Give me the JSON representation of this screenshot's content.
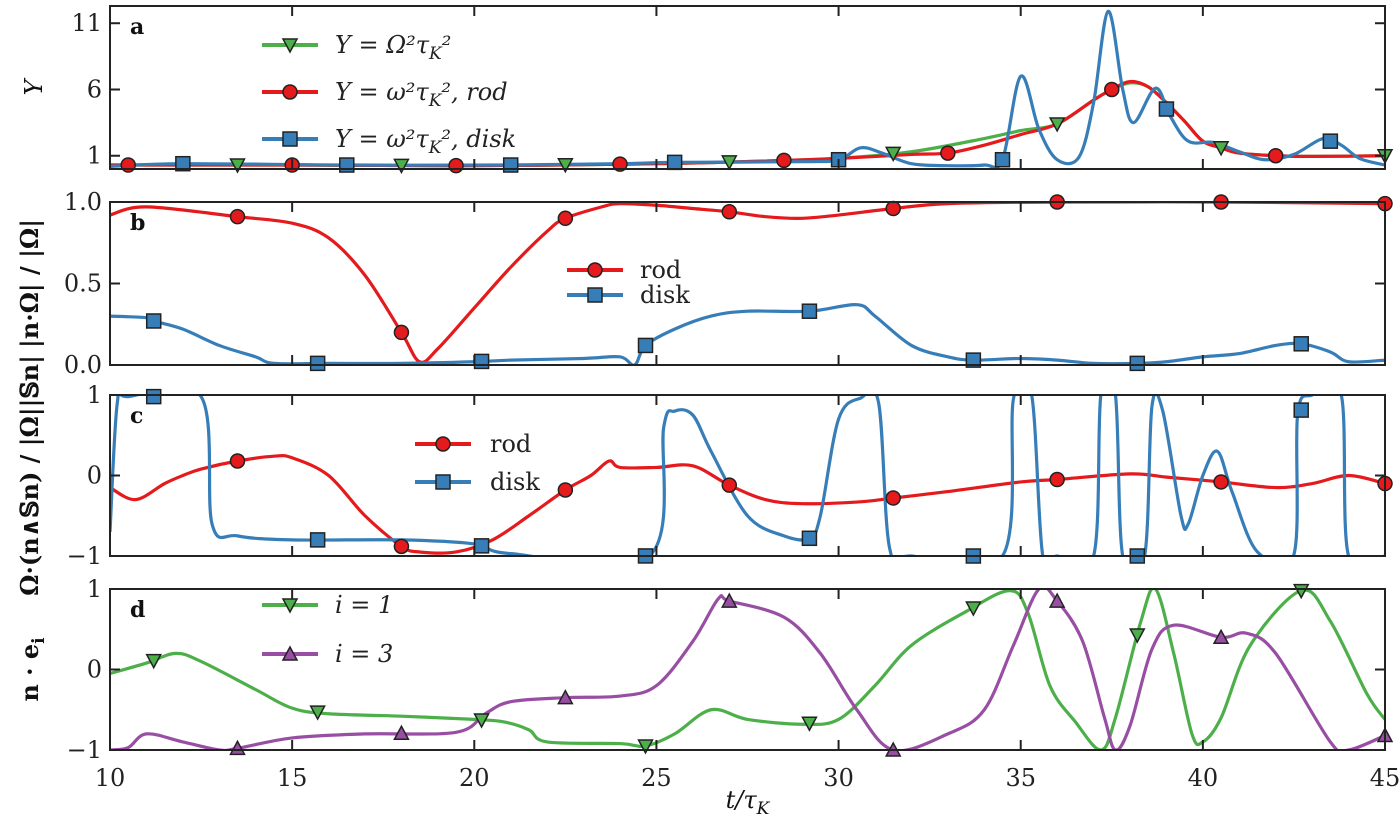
{
  "chart_data": [
    {
      "panel": "a",
      "type": "line",
      "ylabel": "Y",
      "xlim": [
        10,
        45
      ],
      "ylim": [
        0,
        12.3
      ],
      "yticks": [
        1,
        6,
        11
      ],
      "xticks": [
        10,
        15,
        20,
        25,
        30,
        35,
        40,
        45
      ],
      "legend_position": "upper-left",
      "series": [
        {
          "name": "Y = Ω²τ_K²",
          "color": "#4daf4a",
          "marker": "triangle-down",
          "marker_x": [
            13.5,
            18,
            22.5,
            27,
            31.5,
            36,
            40.5,
            45
          ],
          "x": [
            10,
            15,
            20,
            25,
            28,
            30,
            32,
            34,
            35,
            36,
            37,
            37.5,
            38,
            38.5,
            39,
            39.5,
            40,
            40.5,
            41,
            42,
            43,
            45
          ],
          "y": [
            0.3,
            0.3,
            0.25,
            0.4,
            0.6,
            0.8,
            1.3,
            2.3,
            2.9,
            3.4,
            5.2,
            6.0,
            6.5,
            6.2,
            5.0,
            3.6,
            2.1,
            1.6,
            1.2,
            1.0,
            0.95,
            1.0
          ]
        },
        {
          "name": "Y = ω²τ_K², rod",
          "color": "#e41a1c",
          "marker": "circle",
          "marker_x": [
            10.5,
            15,
            19.5,
            24,
            28.5,
            33,
            37.5,
            42
          ],
          "x": [
            10,
            15,
            20,
            25,
            28,
            30,
            32,
            33,
            34,
            35,
            36,
            37,
            37.5,
            38,
            38.5,
            39,
            39.5,
            40,
            40.5,
            41,
            42,
            43,
            45
          ],
          "y": [
            0.3,
            0.3,
            0.25,
            0.4,
            0.6,
            0.8,
            1.1,
            1.2,
            1.8,
            2.6,
            3.4,
            5.2,
            6.0,
            6.6,
            6.2,
            5.0,
            3.6,
            2.1,
            1.6,
            1.2,
            1.0,
            0.95,
            1.0
          ]
        },
        {
          "name": "Y = ω²τ_K², disk",
          "color": "#377eb8",
          "marker": "square",
          "marker_x": [
            12,
            16.5,
            21,
            25.5,
            30,
            34.5,
            39,
            43.5
          ],
          "x": [
            10,
            12,
            16.5,
            21,
            24,
            25.5,
            29,
            30,
            30.6,
            31.2,
            32,
            33,
            34,
            34.5,
            35,
            35.5,
            36,
            36.6,
            37,
            37.4,
            37.8,
            38.1,
            38.7,
            39.1,
            39.6,
            40.3,
            41,
            41.7,
            42.5,
            43.3,
            43.8,
            44.3,
            45
          ],
          "y": [
            0.2,
            0.4,
            0.3,
            0.3,
            0.4,
            0.5,
            0.55,
            0.7,
            1.6,
            1.2,
            0.4,
            0.25,
            0.3,
            0.7,
            7.0,
            3.0,
            0.7,
            0.9,
            5.0,
            11.9,
            6.0,
            3.5,
            6.1,
            4.0,
            2.1,
            2.0,
            1.3,
            0.7,
            1.1,
            2.3,
            1.8,
            0.8,
            0.3
          ]
        }
      ]
    },
    {
      "panel": "b",
      "type": "line",
      "ylabel": "|n·Ω| / |Ω|",
      "xlim": [
        10,
        45
      ],
      "ylim": [
        0,
        1
      ],
      "yticks": [
        0.0,
        0.5,
        1.0
      ],
      "ytick_labels": [
        "0.0",
        "0.5",
        "1.0"
      ],
      "xticks": [
        10,
        15,
        20,
        25,
        30,
        35,
        40,
        45
      ],
      "legend_position": "center",
      "series": [
        {
          "name": "rod",
          "color": "#e41a1c",
          "marker": "circle",
          "marker_x": [
            13.5,
            18,
            22.5,
            27,
            31.5,
            36,
            40.5,
            45
          ],
          "x": [
            10,
            11,
            13.5,
            15,
            16,
            17,
            18,
            18.5,
            19,
            20,
            21,
            22,
            22.5,
            23.5,
            24,
            25,
            26,
            27,
            28,
            29,
            30,
            31.5,
            33,
            36,
            40.5,
            45
          ],
          "y": [
            0.92,
            0.97,
            0.91,
            0.87,
            0.78,
            0.55,
            0.2,
            0.02,
            0.1,
            0.35,
            0.6,
            0.82,
            0.9,
            0.97,
            0.99,
            0.98,
            0.96,
            0.94,
            0.91,
            0.9,
            0.92,
            0.96,
            0.99,
            1.0,
            1.0,
            0.99
          ]
        },
        {
          "name": "disk",
          "color": "#377eb8",
          "marker": "square",
          "marker_x": [
            11.2,
            15.7,
            20.2,
            24.7,
            29.2,
            33.7,
            38.2,
            42.7
          ],
          "x": [
            10,
            11,
            11.2,
            12,
            13,
            14,
            14.5,
            16,
            18,
            20,
            21,
            23,
            24,
            24.4,
            24.7,
            25.5,
            26.5,
            27.5,
            29.2,
            30.5,
            31,
            32,
            33,
            33.7,
            35,
            36,
            37,
            38.2,
            39,
            40,
            41,
            42,
            42.7,
            43.5,
            44,
            45
          ],
          "y": [
            0.3,
            0.29,
            0.27,
            0.22,
            0.12,
            0.05,
            0.01,
            0.01,
            0.01,
            0.02,
            0.03,
            0.04,
            0.05,
            0.0,
            0.12,
            0.22,
            0.3,
            0.33,
            0.33,
            0.37,
            0.3,
            0.12,
            0.05,
            0.03,
            0.04,
            0.03,
            0.01,
            0.01,
            0.02,
            0.05,
            0.07,
            0.12,
            0.13,
            0.08,
            0.02,
            0.03
          ]
        }
      ]
    },
    {
      "panel": "c",
      "type": "line",
      "ylabel": "Ω·(n∧𝕊n) / |Ω||𝕊n|",
      "xlim": [
        10,
        45
      ],
      "ylim": [
        -1,
        1
      ],
      "yticks": [
        -1,
        0,
        1
      ],
      "ytick_labels": [
        "−1",
        "0",
        "1"
      ],
      "xticks": [
        10,
        15,
        20,
        25,
        30,
        35,
        40,
        45
      ],
      "legend_position": "upper-center",
      "series": [
        {
          "name": "rod",
          "color": "#e41a1c",
          "marker": "circle",
          "marker_x": [
            13.5,
            18,
            22.5,
            27,
            31.5,
            36,
            40.5,
            45
          ],
          "x": [
            10,
            10.7,
            11.5,
            12,
            12.5,
            13.5,
            14.5,
            15,
            16,
            17,
            18,
            18.5,
            19.5,
            20.5,
            21.5,
            22.5,
            23.2,
            23.7,
            24,
            25,
            26,
            27,
            28,
            29,
            30.5,
            31.5,
            33,
            35,
            36,
            38,
            39,
            40.5,
            42,
            43,
            44,
            45
          ],
          "y": [
            -0.15,
            -0.3,
            -0.1,
            0.0,
            0.08,
            0.18,
            0.24,
            0.22,
            0.0,
            -0.5,
            -0.88,
            -0.95,
            -0.95,
            -0.8,
            -0.5,
            -0.18,
            0.0,
            0.18,
            0.1,
            0.1,
            0.12,
            -0.12,
            -0.3,
            -0.35,
            -0.33,
            -0.28,
            -0.2,
            -0.08,
            -0.05,
            0.02,
            -0.02,
            -0.08,
            -0.15,
            -0.1,
            0.0,
            -0.1
          ]
        },
        {
          "name": "disk",
          "color": "#377eb8",
          "marker": "square",
          "marker_x": [
            11.2,
            15.7,
            20.2,
            24.7,
            29.2,
            33.7,
            38.2,
            42.7
          ],
          "x": [
            10,
            10.2,
            10.5,
            12.5,
            12.8,
            13.5,
            15,
            18,
            20,
            21,
            24.8,
            25.2,
            25.5,
            26,
            26.5,
            27.5,
            28.5,
            29.2,
            29.5,
            30,
            30.6,
            31.1,
            31.4,
            32,
            34.5,
            34.8,
            35.3,
            35.6,
            36,
            37,
            37.2,
            37.6,
            37.8,
            38.4,
            38.6,
            38.9,
            39.4,
            39.6,
            40,
            40.4,
            40.8,
            41.5,
            42.5,
            42.6,
            43,
            43.8,
            44,
            45
          ],
          "y": [
            -0.7,
            0.9,
            0.98,
            0.98,
            -0.6,
            -0.75,
            -0.8,
            -0.8,
            -0.85,
            -0.97,
            -1.0,
            0.6,
            0.8,
            0.75,
            0.3,
            -0.5,
            -0.75,
            -0.78,
            -0.5,
            0.7,
            0.96,
            0.9,
            -0.9,
            -1.0,
            -1.0,
            0.95,
            1.0,
            -0.98,
            -1.0,
            -1.0,
            1.0,
            1.0,
            -1.0,
            -1.0,
            0.85,
            0.8,
            -0.5,
            -0.6,
            0.0,
            0.3,
            -0.2,
            -0.95,
            -0.98,
            0.75,
            1.0,
            1.0,
            -1.0,
            -1.0
          ]
        }
      ]
    },
    {
      "panel": "d",
      "type": "line",
      "ylabel": "n · e_i",
      "xlabel": "t/τ_K",
      "xlim": [
        10,
        45
      ],
      "ylim": [
        -1,
        1
      ],
      "yticks": [
        -1,
        0,
        1
      ],
      "ytick_labels": [
        "−1",
        "0",
        "1"
      ],
      "xticks": [
        10,
        15,
        20,
        25,
        30,
        35,
        40,
        45
      ],
      "xtick_labels": [
        "10",
        "15",
        "20",
        "25",
        "30",
        "35",
        "40",
        "45"
      ],
      "legend_position": "upper-left",
      "series": [
        {
          "name": "i = 1",
          "color": "#4daf4a",
          "marker": "triangle-down",
          "marker_x": [
            11.2,
            15.7,
            20.2,
            24.7,
            29.2,
            33.7,
            38.2,
            42.7
          ],
          "x": [
            10,
            11,
            11.8,
            12.5,
            14,
            15,
            16,
            18,
            20,
            20.8,
            21.5,
            22,
            24,
            24.7,
            25.5,
            26.5,
            27.5,
            29,
            30,
            31,
            32,
            33.5,
            34.7,
            35.2,
            35.8,
            36.5,
            37.2,
            37.6,
            38.3,
            38.7,
            39.2,
            39.7,
            40,
            40.5,
            41.3,
            42.7,
            43.5,
            44.5,
            45
          ],
          "y": [
            -0.05,
            0.08,
            0.2,
            0.1,
            -0.25,
            -0.48,
            -0.55,
            -0.58,
            -0.62,
            -0.65,
            -0.75,
            -0.9,
            -0.92,
            -0.95,
            -0.8,
            -0.5,
            -0.62,
            -0.68,
            -0.62,
            -0.2,
            0.3,
            0.72,
            0.98,
            0.7,
            -0.2,
            -0.65,
            -1.0,
            -0.6,
            0.6,
            1.0,
            0.2,
            -0.8,
            -0.9,
            -0.6,
            0.3,
            0.98,
            0.6,
            -0.3,
            -0.62
          ]
        },
        {
          "name": "i = 3",
          "color": "#984ea3",
          "marker": "triangle-up",
          "marker_x": [
            13.5,
            18,
            22.5,
            27,
            31.5,
            36,
            40.5,
            45
          ],
          "x": [
            10,
            10.5,
            11,
            12,
            13,
            13.5,
            15,
            17,
            19.5,
            20.3,
            21,
            22.5,
            24,
            25,
            26,
            26.7,
            27,
            28.5,
            29.5,
            30.5,
            31.5,
            33,
            34,
            34.8,
            35.5,
            36,
            36.7,
            37.3,
            37.6,
            38,
            38.6,
            39.2,
            40.5,
            41.2,
            42,
            43.5,
            44,
            45
          ],
          "y": [
            -1.0,
            -0.97,
            -0.8,
            -0.9,
            -1.0,
            -0.98,
            -0.85,
            -0.8,
            -0.78,
            -0.55,
            -0.4,
            -0.35,
            -0.33,
            -0.2,
            0.35,
            0.88,
            0.85,
            0.65,
            0.2,
            -0.5,
            -1.0,
            -0.8,
            -0.5,
            0.3,
            1.0,
            0.85,
            0.35,
            -0.6,
            -1.0,
            -0.7,
            0.25,
            0.55,
            0.4,
            0.45,
            0.2,
            -0.9,
            -1.0,
            -0.82
          ]
        }
      ]
    }
  ]
}
